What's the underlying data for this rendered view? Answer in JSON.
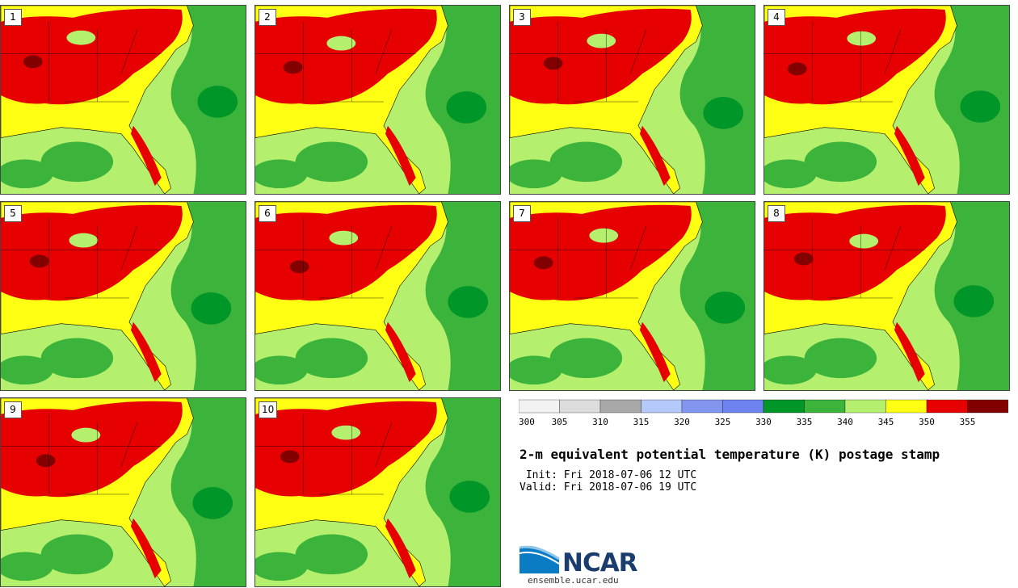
{
  "panels": [
    {
      "label": "1"
    },
    {
      "label": "2"
    },
    {
      "label": "3"
    },
    {
      "label": "4"
    },
    {
      "label": "5"
    },
    {
      "label": "6"
    },
    {
      "label": "7"
    },
    {
      "label": "8"
    },
    {
      "label": "9"
    },
    {
      "label": "10"
    }
  ],
  "colorbar": {
    "ticks": [
      "300",
      "305",
      "310",
      "315",
      "320",
      "325",
      "330",
      "335",
      "340",
      "345",
      "350",
      "355"
    ],
    "colors": [
      "#f2f2f2",
      "#dcdcdc",
      "#a8a8a8",
      "#b4c8fa",
      "#8296f0",
      "#6e82f0",
      "#009628",
      "#3cb43c",
      "#b4f06e",
      "#ffff14",
      "#e60000",
      "#820000"
    ]
  },
  "title": "2-m equivalent potential temperature (K) postage stamp",
  "init": " Init: Fri 2018-07-06 12 UTC",
  "valid": "Valid: Fri 2018-07-06 19 UTC",
  "logo": {
    "text": "NCAR",
    "url": "ensemble.ucar.edu"
  }
}
